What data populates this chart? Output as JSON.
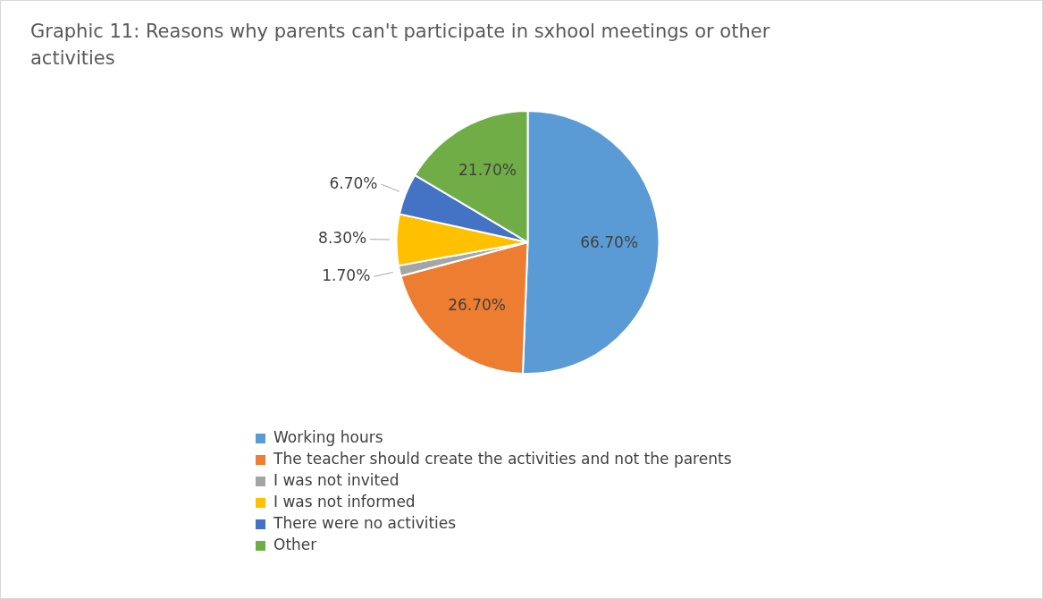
{
  "chart_data": {
    "type": "pie",
    "title": "Graphic 11: Reasons why parents can't participate in sxhool meetings or other activities",
    "categories": [
      "Working hours",
      "The teacher should create the activities and not the parents",
      "I was not invited",
      "I was not informed",
      "There were no activities",
      "Other"
    ],
    "values": [
      66.7,
      26.7,
      1.7,
      8.3,
      6.7,
      21.7
    ],
    "value_labels": [
      "66.70%",
      "26.70%",
      "1.70%",
      "8.30%",
      "6.70%",
      "21.70%"
    ],
    "colors": [
      "#5b9bd5",
      "#ed7d31",
      "#a5a5a5",
      "#ffc000",
      "#4472c4",
      "#70ad47"
    ],
    "legend": "bottom"
  }
}
